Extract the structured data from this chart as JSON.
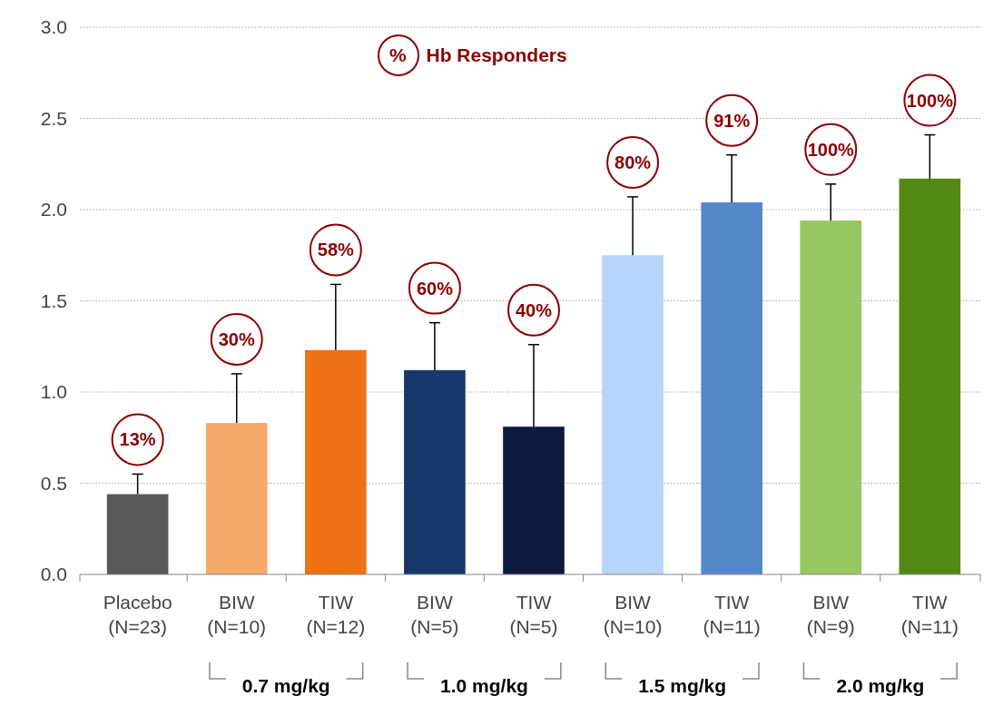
{
  "chart_data": {
    "type": "bar",
    "categories": [
      "Placebo (N=23)",
      "BIW (N=10)",
      "TIW (N=12)",
      "BIW (N=5)",
      "TIW (N=5)",
      "BIW (N=10)",
      "TIW (N=11)",
      "BIW (N=9)",
      "TIW (N=11)"
    ],
    "values": [
      0.44,
      0.83,
      1.23,
      1.12,
      0.81,
      1.75,
      2.04,
      1.94,
      2.17
    ],
    "errors": [
      [
        0.44,
        0.55
      ],
      [
        0.83,
        1.1
      ],
      [
        1.23,
        1.59
      ],
      [
        1.12,
        1.38
      ],
      [
        0.81,
        1.26
      ],
      [
        1.75,
        2.07
      ],
      [
        2.04,
        2.3
      ],
      [
        1.94,
        2.14
      ],
      [
        2.17,
        2.41
      ]
    ],
    "colors": [
      "#595959",
      "#f5a96a",
      "#ef7215",
      "#17376a",
      "#0c1b3d",
      "#b8d4fb",
      "#5588c8",
      "#98c660",
      "#538812"
    ],
    "annotations": [
      "% Hb Responders",
      "0.7 mg/kg",
      "1.0 mg/kg",
      "1.5 mg/kg",
      "2.0 mg/kg",
      "13%",
      "30%",
      "58%",
      "60%",
      "40%",
      "80%",
      "91%",
      "100%",
      "100%"
    ],
    "ylim": [
      0,
      3
    ],
    "yticks": [
      {
        "value": 0,
        "label": "0.0"
      },
      {
        "value": 0.5,
        "label": "0.5"
      },
      {
        "value": 1,
        "label": "1.0"
      },
      {
        "value": 1.5,
        "label": "1.5"
      },
      {
        "value": 2,
        "label": "2.0"
      },
      {
        "value": 2.5,
        "label": "2.5"
      },
      {
        "value": 3,
        "label": "3.0"
      }
    ],
    "grid": "y"
  }
}
